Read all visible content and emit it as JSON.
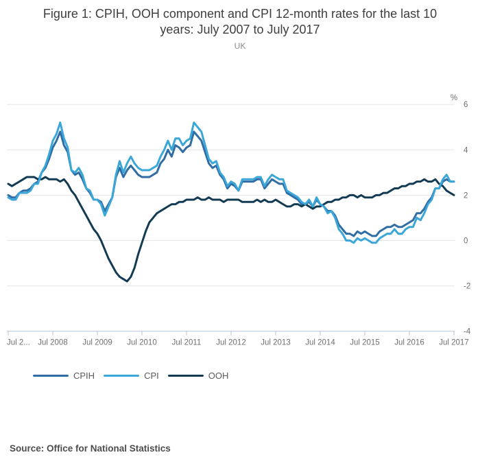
{
  "title": "Figure 1: CPIH, OOH component and CPI 12-month rates for the last 10 years: July 2007 to July 2017",
  "subtitle": "UK",
  "source": "Source: Office for National Statistics",
  "chart_data": {
    "type": "line",
    "unit": "%",
    "x_start": "Jul 2007",
    "x_end": "Jul 2017",
    "frequency": "monthly",
    "ylim": [
      -4,
      6
    ],
    "y_ticks": [
      6,
      4,
      2,
      0,
      -2,
      -4
    ],
    "x_tick_labels": [
      "Jul 2...",
      "Jul 2008",
      "Jul 2009",
      "Jul 2010",
      "Jul 2011",
      "Jul 2012",
      "Jul 2013",
      "Jul 2014",
      "Jul 2015",
      "Jul 2016",
      "Jul 2017"
    ],
    "grid": "horizontal",
    "legend_position": "bottom-left",
    "grid_color": "#e6e6e6",
    "axis_color": "#bfcbdd",
    "label_color": "#6f6f6f",
    "series": [
      {
        "name": "CPIH",
        "color": "#2f6da4",
        "values": [
          2.0,
          1.9,
          1.9,
          2.1,
          2.2,
          2.2,
          2.3,
          2.5,
          2.6,
          3.0,
          3.2,
          3.6,
          4.1,
          4.4,
          4.8,
          4.2,
          3.9,
          3.1,
          2.9,
          3.0,
          2.7,
          2.3,
          2.1,
          1.8,
          1.8,
          1.7,
          1.3,
          1.6,
          1.9,
          2.8,
          3.2,
          2.8,
          3.1,
          3.3,
          3.1,
          2.9,
          2.8,
          2.8,
          2.8,
          2.9,
          3.0,
          3.4,
          3.6,
          4.0,
          3.7,
          4.2,
          4.1,
          3.9,
          4.1,
          4.2,
          4.8,
          4.6,
          4.4,
          3.9,
          3.4,
          3.2,
          3.3,
          2.9,
          2.7,
          2.3,
          2.5,
          2.4,
          2.2,
          2.6,
          2.6,
          2.6,
          2.6,
          2.7,
          2.7,
          2.3,
          2.5,
          2.7,
          2.6,
          2.5,
          2.5,
          2.1,
          2.0,
          1.9,
          1.8,
          1.6,
          1.6,
          1.7,
          1.5,
          1.8,
          1.6,
          1.5,
          1.3,
          1.3,
          1.1,
          0.7,
          0.5,
          0.3,
          0.3,
          0.2,
          0.4,
          0.3,
          0.4,
          0.3,
          0.2,
          0.2,
          0.4,
          0.5,
          0.6,
          0.6,
          0.7,
          0.6,
          0.6,
          0.7,
          0.8,
          0.9,
          1.2,
          1.2,
          1.4,
          1.7,
          1.9,
          2.3,
          2.3,
          2.6,
          2.7,
          2.6,
          2.6
        ]
      },
      {
        "name": "CPI",
        "color": "#3ba6d8",
        "values": [
          1.9,
          1.8,
          1.8,
          2.1,
          2.1,
          2.1,
          2.2,
          2.5,
          2.5,
          3.0,
          3.3,
          3.8,
          4.4,
          4.7,
          5.2,
          4.5,
          4.1,
          3.1,
          3.0,
          3.2,
          2.9,
          2.3,
          2.2,
          1.8,
          1.8,
          1.6,
          1.1,
          1.5,
          1.9,
          2.9,
          3.5,
          3.0,
          3.4,
          3.7,
          3.4,
          3.2,
          3.1,
          3.1,
          3.1,
          3.2,
          3.3,
          3.7,
          4.0,
          4.4,
          4.0,
          4.5,
          4.5,
          4.2,
          4.4,
          4.5,
          5.2,
          5.0,
          4.8,
          4.2,
          3.6,
          3.4,
          3.5,
          3.0,
          2.8,
          2.4,
          2.6,
          2.5,
          2.2,
          2.7,
          2.7,
          2.7,
          2.7,
          2.8,
          2.8,
          2.4,
          2.7,
          2.9,
          2.8,
          2.7,
          2.7,
          2.2,
          2.1,
          2.0,
          1.9,
          1.7,
          1.6,
          1.8,
          1.5,
          1.9,
          1.6,
          1.5,
          1.2,
          1.3,
          1.0,
          0.5,
          0.3,
          0.0,
          0.0,
          -0.1,
          0.1,
          0.0,
          0.1,
          0.0,
          -0.1,
          -0.1,
          0.1,
          0.2,
          0.3,
          0.3,
          0.5,
          0.3,
          0.3,
          0.5,
          0.6,
          0.6,
          1.0,
          0.9,
          1.2,
          1.6,
          1.8,
          2.3,
          2.3,
          2.7,
          2.9,
          2.6,
          2.6
        ]
      },
      {
        "name": "OOH",
        "color": "#123a52",
        "values": [
          2.5,
          2.4,
          2.5,
          2.6,
          2.7,
          2.8,
          2.8,
          2.8,
          2.7,
          2.7,
          2.8,
          2.7,
          2.7,
          2.7,
          2.6,
          2.7,
          2.5,
          2.2,
          2.0,
          1.7,
          1.4,
          1.1,
          0.8,
          0.5,
          0.3,
          0.0,
          -0.4,
          -0.8,
          -1.1,
          -1.4,
          -1.6,
          -1.7,
          -1.8,
          -1.6,
          -1.2,
          -0.6,
          -0.1,
          0.4,
          0.8,
          1.0,
          1.2,
          1.3,
          1.4,
          1.5,
          1.6,
          1.6,
          1.7,
          1.7,
          1.8,
          1.8,
          1.8,
          1.9,
          1.8,
          1.8,
          1.9,
          1.8,
          1.8,
          1.8,
          1.7,
          1.8,
          1.8,
          1.8,
          1.8,
          1.7,
          1.7,
          1.7,
          1.7,
          1.8,
          1.7,
          1.8,
          1.7,
          1.7,
          1.8,
          1.7,
          1.6,
          1.5,
          1.5,
          1.6,
          1.6,
          1.5,
          1.6,
          1.5,
          1.4,
          1.5,
          1.5,
          1.6,
          1.7,
          1.7,
          1.8,
          1.8,
          1.9,
          1.9,
          2.0,
          2.0,
          1.9,
          2.0,
          1.9,
          1.9,
          1.9,
          2.0,
          2.0,
          2.1,
          2.1,
          2.2,
          2.3,
          2.3,
          2.4,
          2.4,
          2.5,
          2.5,
          2.6,
          2.6,
          2.7,
          2.6,
          2.6,
          2.7,
          2.5,
          2.4,
          2.2,
          2.1,
          2.0
        ]
      }
    ]
  }
}
